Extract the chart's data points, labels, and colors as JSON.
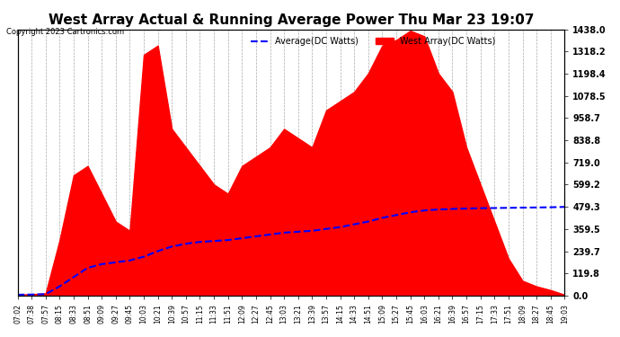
{
  "title": "West Array Actual & Running Average Power Thu Mar 23 19:07",
  "copyright": "Copyright 2023 Cartronics.com",
  "ylabel_right_ticks": [
    0.0,
    119.8,
    239.7,
    359.5,
    479.3,
    599.2,
    719.0,
    838.8,
    958.7,
    1078.5,
    1198.4,
    1318.2,
    1438.0
  ],
  "legend_average": "Average(DC Watts)",
  "legend_west": "West Array(DC Watts)",
  "average_color": "blue",
  "west_color": "red",
  "bg_color": "#ffffff",
  "grid_color": "#aaaaaa",
  "title_color": "black",
  "copyright_color": "black",
  "x_ticks": [
    "07:02",
    "07:38",
    "07:57",
    "08:15",
    "08:33",
    "08:51",
    "09:09",
    "09:27",
    "09:45",
    "10:03",
    "10:21",
    "10:39",
    "10:57",
    "11:15",
    "11:33",
    "11:51",
    "12:09",
    "12:27",
    "12:45",
    "13:03",
    "13:21",
    "13:39",
    "13:57",
    "14:15",
    "14:33",
    "14:51",
    "15:09",
    "15:27",
    "15:45",
    "16:03",
    "16:21",
    "16:39",
    "16:57",
    "17:15",
    "17:33",
    "17:51",
    "18:09",
    "18:27",
    "18:45",
    "19:03"
  ],
  "west_values": [
    5,
    8,
    12,
    300,
    650,
    700,
    550,
    400,
    350,
    1300,
    1350,
    900,
    800,
    700,
    600,
    550,
    700,
    750,
    800,
    900,
    850,
    800,
    1000,
    1050,
    1100,
    1200,
    1350,
    1380,
    1430,
    1400,
    1200,
    1100,
    800,
    600,
    400,
    200,
    80,
    50,
    30,
    5
  ],
  "avg_values": [
    5,
    6,
    8,
    50,
    100,
    150,
    170,
    180,
    190,
    210,
    240,
    265,
    280,
    290,
    295,
    300,
    310,
    320,
    330,
    340,
    345,
    350,
    360,
    370,
    385,
    400,
    420,
    435,
    450,
    460,
    465,
    468,
    470,
    472,
    473,
    474,
    475,
    476,
    477,
    479
  ]
}
